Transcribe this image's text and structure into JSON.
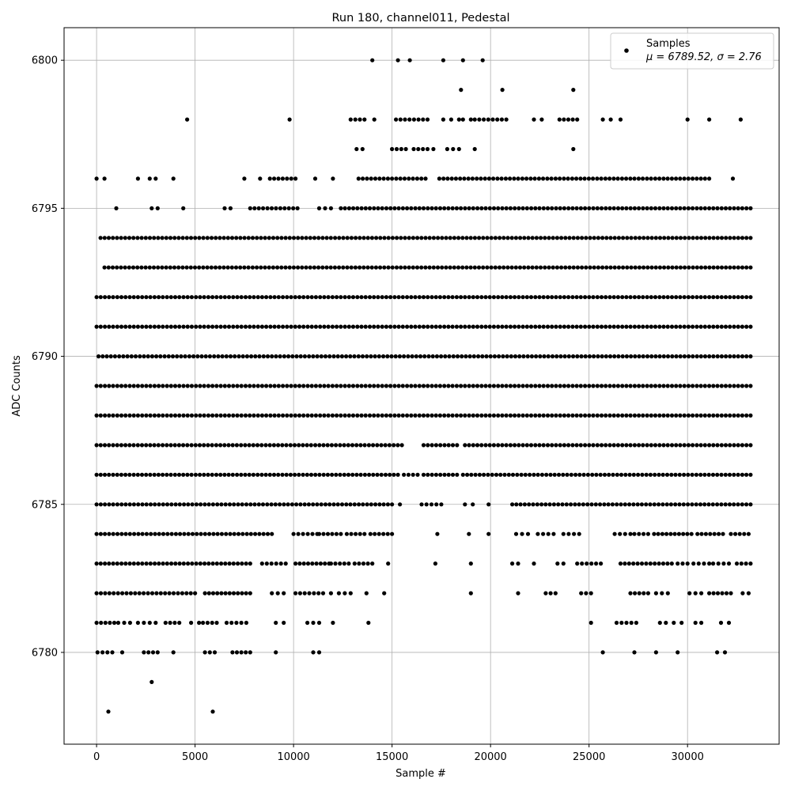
{
  "chart_data": {
    "type": "scatter",
    "title": "Run 180, channel011, Pedestal",
    "xlabel": "Sample #",
    "ylabel": "ADC Counts",
    "xlim": [
      -1650,
      34650
    ],
    "ylim": [
      6776.9,
      6801.1
    ],
    "xticks": [
      0,
      5000,
      10000,
      15000,
      20000,
      25000,
      30000
    ],
    "yticks": [
      6780,
      6785,
      6790,
      6795,
      6800
    ],
    "grid": true,
    "marker_color": "#000000",
    "legend": {
      "position": "top-right",
      "entries": [
        {
          "label": "Samples",
          "stats": "μ = 6789.52, σ = 2.76"
        }
      ]
    },
    "series": [
      {
        "name": "Samples",
        "sample_count": 33000,
        "value_levels": [
          {
            "y": 6778,
            "x_ranges": [
              [
                600,
                700
              ],
              [
                5900,
                6050
              ]
            ]
          },
          {
            "y": 6779,
            "x_ranges": [
              [
                2800,
                2850
              ]
            ]
          },
          {
            "y": 6780,
            "x_ranges": [
              [
                50,
                800
              ],
              [
                1300,
                1500
              ],
              [
                2400,
                3100
              ],
              [
                3900,
                4000
              ],
              [
                5500,
                6000
              ],
              [
                6900,
                7800
              ],
              [
                9100,
                9200
              ],
              [
                11000,
                11300
              ],
              [
                25700,
                25800
              ],
              [
                27300,
                27400
              ],
              [
                28400,
                28500
              ],
              [
                29500,
                29600
              ],
              [
                31500,
                31900
              ]
            ]
          },
          {
            "y": 6781,
            "x_ranges": [
              [
                0,
                900
              ],
              [
                1100,
                1700
              ],
              [
                2100,
                2700
              ],
              [
                3000,
                3200
              ],
              [
                3500,
                4200
              ],
              [
                4800,
                5200
              ],
              [
                5400,
                6100
              ],
              [
                6600,
                7600
              ],
              [
                9100,
                9500
              ],
              [
                10700,
                10900
              ],
              [
                11000,
                11300
              ],
              [
                12000,
                12100
              ],
              [
                13800,
                13900
              ],
              [
                25100,
                25300
              ],
              [
                26400,
                27400
              ],
              [
                28600,
                28900
              ],
              [
                29300,
                29700
              ],
              [
                30400,
                30700
              ],
              [
                31700,
                32100
              ]
            ]
          },
          {
            "y": 6782,
            "x_ranges": [
              [
                0,
                5000
              ],
              [
                5500,
                7800
              ],
              [
                8900,
                9500
              ],
              [
                10100,
                11500
              ],
              [
                11900,
                12300
              ],
              [
                12600,
                12900
              ],
              [
                13700,
                13800
              ],
              [
                14600,
                14700
              ],
              [
                19000,
                19100
              ],
              [
                21400,
                21600
              ],
              [
                22800,
                23300
              ],
              [
                24600,
                25100
              ],
              [
                27100,
                28000
              ],
              [
                28400,
                29000
              ],
              [
                30100,
                30700
              ],
              [
                31100,
                32200
              ],
              [
                32800,
                33100
              ]
            ]
          },
          {
            "y": 6783,
            "x_ranges": [
              [
                0,
                7800
              ],
              [
                8400,
                9600
              ],
              [
                10100,
                11800
              ],
              [
                11900,
                12800
              ],
              [
                13100,
                14000
              ],
              [
                14800,
                14900
              ],
              [
                17200,
                17300
              ],
              [
                19000,
                19100
              ],
              [
                21100,
                21400
              ],
              [
                22200,
                22300
              ],
              [
                23400,
                23700
              ],
              [
                24400,
                25600
              ],
              [
                26600,
                29200
              ],
              [
                29500,
                30000
              ],
              [
                30300,
                31100
              ],
              [
                31300,
                32100
              ],
              [
                32500,
                33200
              ]
            ]
          },
          {
            "y": 6784,
            "x_ranges": [
              [
                0,
                8900
              ],
              [
                10000,
                11200
              ],
              [
                11300,
                12400
              ],
              [
                12700,
                13600
              ],
              [
                13900,
                15000
              ],
              [
                17300,
                17500
              ],
              [
                18900,
                19000
              ],
              [
                19900,
                20000
              ],
              [
                21300,
                21900
              ],
              [
                22400,
                23200
              ],
              [
                23700,
                24500
              ],
              [
                26300,
                27100
              ],
              [
                27300,
                28000
              ],
              [
                28300,
                30200
              ],
              [
                30500,
                31800
              ],
              [
                32200,
                33100
              ]
            ]
          },
          {
            "y": 6785,
            "x_ranges": [
              [
                0,
                15000
              ],
              [
                15400,
                15500
              ],
              [
                16500,
                17500
              ],
              [
                18700,
                19100
              ],
              [
                19900,
                20100
              ],
              [
                21100,
                33200
              ]
            ]
          },
          {
            "y": 6786,
            "x_ranges": [
              [
                0,
                15300
              ],
              [
                15600,
                16300
              ],
              [
                16600,
                18300
              ],
              [
                18600,
                33200
              ]
            ]
          },
          {
            "y": 6787,
            "x_ranges": [
              [
                0,
                15500
              ],
              [
                16600,
                18300
              ],
              [
                18700,
                33200
              ]
            ]
          },
          {
            "y": 6788,
            "x_ranges": [
              [
                0,
                33200
              ]
            ]
          },
          {
            "y": 6789,
            "x_ranges": [
              [
                0,
                33200
              ]
            ]
          },
          {
            "y": 6790,
            "x_ranges": [
              [
                100,
                33200
              ]
            ]
          },
          {
            "y": 6791,
            "x_ranges": [
              [
                0,
                33200
              ]
            ]
          },
          {
            "y": 6792,
            "x_ranges": [
              [
                0,
                33200
              ]
            ]
          },
          {
            "y": 6793,
            "x_ranges": [
              [
                400,
                33200
              ]
            ]
          },
          {
            "y": 6794,
            "x_ranges": [
              [
                200,
                33200
              ]
            ]
          },
          {
            "y": 6795,
            "x_ranges": [
              [
                1000,
                1100
              ],
              [
                2800,
                3100
              ],
              [
                4400,
                4500
              ],
              [
                6500,
                6800
              ],
              [
                7800,
                10200
              ],
              [
                11300,
                11600
              ],
              [
                11900,
                12100
              ],
              [
                12400,
                33200
              ]
            ]
          },
          {
            "y": 6796,
            "x_ranges": [
              [
                0,
                100
              ],
              [
                400,
                500
              ],
              [
                2100,
                2200
              ],
              [
                2700,
                3000
              ],
              [
                3900,
                4000
              ],
              [
                7500,
                7600
              ],
              [
                8300,
                8400
              ],
              [
                8800,
                10100
              ],
              [
                11100,
                11300
              ],
              [
                12000,
                12100
              ],
              [
                13300,
                16700
              ],
              [
                17400,
                31100
              ],
              [
                32300,
                32400
              ]
            ]
          },
          {
            "y": 6797,
            "x_ranges": [
              [
                13200,
                13500
              ],
              [
                15000,
                15700
              ],
              [
                16100,
                16800
              ],
              [
                17100,
                17200
              ],
              [
                17800,
                18400
              ],
              [
                19200,
                19300
              ],
              [
                24200,
                24300
              ]
            ]
          },
          {
            "y": 6798,
            "x_ranges": [
              [
                4600,
                4700
              ],
              [
                9800,
                9900
              ],
              [
                12900,
                13600
              ],
              [
                14100,
                14200
              ],
              [
                15200,
                16800
              ],
              [
                17600,
                17700
              ],
              [
                18000,
                18400
              ],
              [
                18600,
                19000
              ],
              [
                19200,
                20800
              ],
              [
                22200,
                22600
              ],
              [
                23500,
                24400
              ],
              [
                25700,
                26100
              ],
              [
                26600,
                26700
              ],
              [
                30000,
                30100
              ],
              [
                31100,
                31200
              ],
              [
                32700,
                32800
              ]
            ]
          },
          {
            "y": 6799,
            "x_ranges": [
              [
                18500,
                18600
              ],
              [
                20600,
                20700
              ],
              [
                24200,
                24300
              ]
            ]
          },
          {
            "y": 6800,
            "x_ranges": [
              [
                14000,
                14100
              ],
              [
                15300,
                15400
              ],
              [
                15900,
                16000
              ],
              [
                17600,
                17700
              ],
              [
                18600,
                18700
              ],
              [
                19600,
                19700
              ]
            ]
          }
        ]
      }
    ]
  }
}
